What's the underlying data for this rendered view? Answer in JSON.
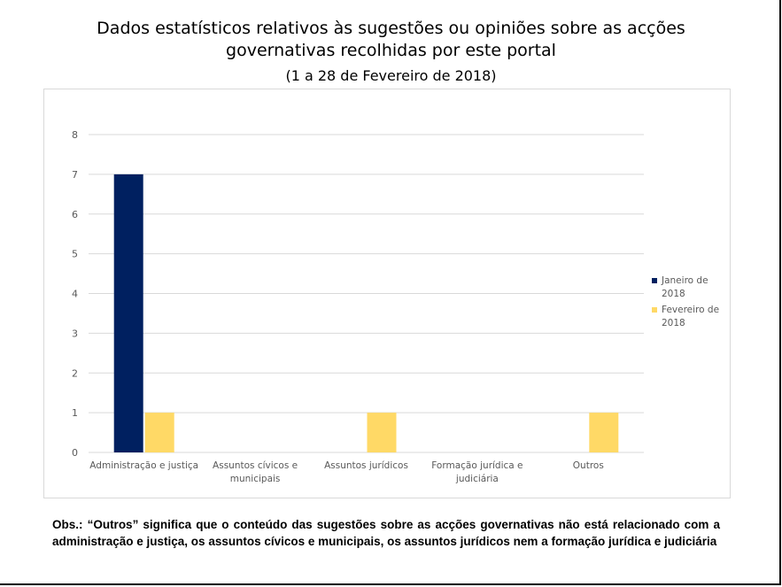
{
  "header": {
    "title": "Dados estatísticos relativos às sugestões ou opiniões sobre as acções governativas recolhidas por este portal",
    "subtitle": "(1 a 28 de Fevereiro de 2018)"
  },
  "colors": {
    "janeiro": "#002060",
    "fevereiro": "#FFD966",
    "gridline": "#d9d9d9",
    "axis_text": "#595959"
  },
  "chart_data": {
    "type": "bar",
    "title": "Dados estatísticos relativos às sugestões ou opiniões sobre as acções governativas recolhidas por este portal",
    "subtitle": "(1 a 28 de Fevereiro de 2018)",
    "xlabel": "",
    "ylabel": "",
    "ylim": [
      0,
      8
    ],
    "yticks": [
      0,
      1,
      2,
      3,
      4,
      5,
      6,
      7,
      8
    ],
    "grid": true,
    "legend_position": "right",
    "categories": [
      [
        "Administração e justiça"
      ],
      [
        "Assuntos cívicos e",
        "municipais"
      ],
      [
        "Assuntos jurídicos"
      ],
      [
        "Formação jurídica e",
        "judiciária"
      ],
      [
        "Outros"
      ]
    ],
    "series": [
      {
        "name": "Janeiro de 2018",
        "legend_lines": [
          "Janeiro de",
          "2018"
        ],
        "color": "#002060",
        "values": [
          7,
          0,
          0,
          0,
          0
        ]
      },
      {
        "name": "Fevereiro de 2018",
        "legend_lines": [
          "Fevereiro de",
          "2018"
        ],
        "color": "#FFD966",
        "values": [
          1,
          0,
          1,
          0,
          1
        ]
      }
    ]
  },
  "note": {
    "text": "Obs.: “Outros” significa que o conteúdo das sugestões sobre as acções governativas não está relacionado com a administração e justiça, os assuntos cívicos e municipais, os assuntos jurídicos nem a formação jurídica e judiciária"
  }
}
